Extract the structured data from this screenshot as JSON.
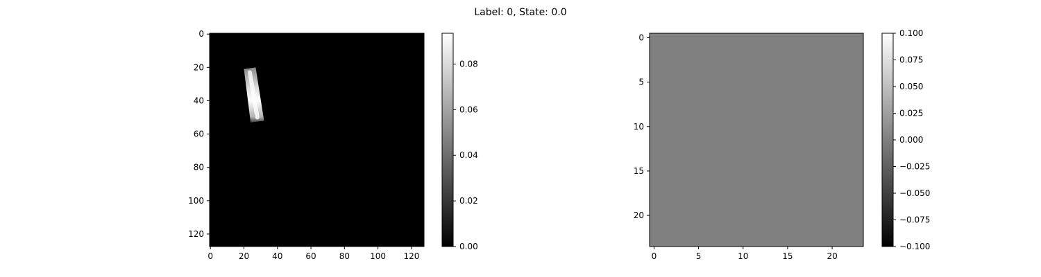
{
  "figure": {
    "title": "Label: 0, State: 0.0"
  },
  "colors": {
    "background": "#ffffff",
    "axis": "#000000",
    "cmap": "gray"
  },
  "chart_data": [
    {
      "type": "heatmap",
      "title": "",
      "xlabel": "",
      "ylabel": "",
      "colormap": "gray",
      "grid": false,
      "image_size": [
        128,
        128
      ],
      "xlim": [
        -0.5,
        127.5
      ],
      "ylim": [
        127.5,
        -0.5
      ],
      "x_ticks": [
        0,
        20,
        40,
        60,
        80,
        100,
        120
      ],
      "y_ticks": [
        0,
        20,
        40,
        60,
        80,
        100,
        120
      ],
      "background_value": 0.0,
      "shape": {
        "kind": "rotated-bar",
        "corners": [
          [
            20,
            21
          ],
          [
            27,
            20
          ],
          [
            32,
            52
          ],
          [
            24,
            53
          ]
        ],
        "centerline_top": [
          23.5,
          20.5
        ],
        "centerline_bottom": [
          28,
          52.5
        ],
        "edge_value": 0.025,
        "peak_value": 0.093
      },
      "colorbar": {
        "range": [
          0.0,
          0.0935
        ],
        "ticks": [
          0.0,
          0.02,
          0.04,
          0.06,
          0.08
        ],
        "tick_labels": [
          "0.00",
          "0.02",
          "0.04",
          "0.06",
          "0.08"
        ]
      }
    },
    {
      "type": "heatmap",
      "title": "",
      "xlabel": "",
      "ylabel": "",
      "colormap": "gray",
      "grid": false,
      "image_size": [
        24,
        24
      ],
      "xlim": [
        -0.5,
        23.5
      ],
      "ylim": [
        23.5,
        -0.5
      ],
      "x_ticks": [
        0,
        5,
        10,
        15,
        20
      ],
      "y_ticks": [
        0,
        5,
        10,
        15,
        20
      ],
      "fill_value": 0.0,
      "colorbar": {
        "range": [
          -0.1,
          0.1
        ],
        "ticks": [
          -0.1,
          -0.075,
          -0.05,
          -0.025,
          0.0,
          0.025,
          0.05,
          0.075,
          0.1
        ],
        "tick_labels": [
          "−0.100",
          "−0.075",
          "−0.050",
          "−0.025",
          "0.000",
          "0.025",
          "0.050",
          "0.075",
          "0.100"
        ]
      }
    }
  ]
}
